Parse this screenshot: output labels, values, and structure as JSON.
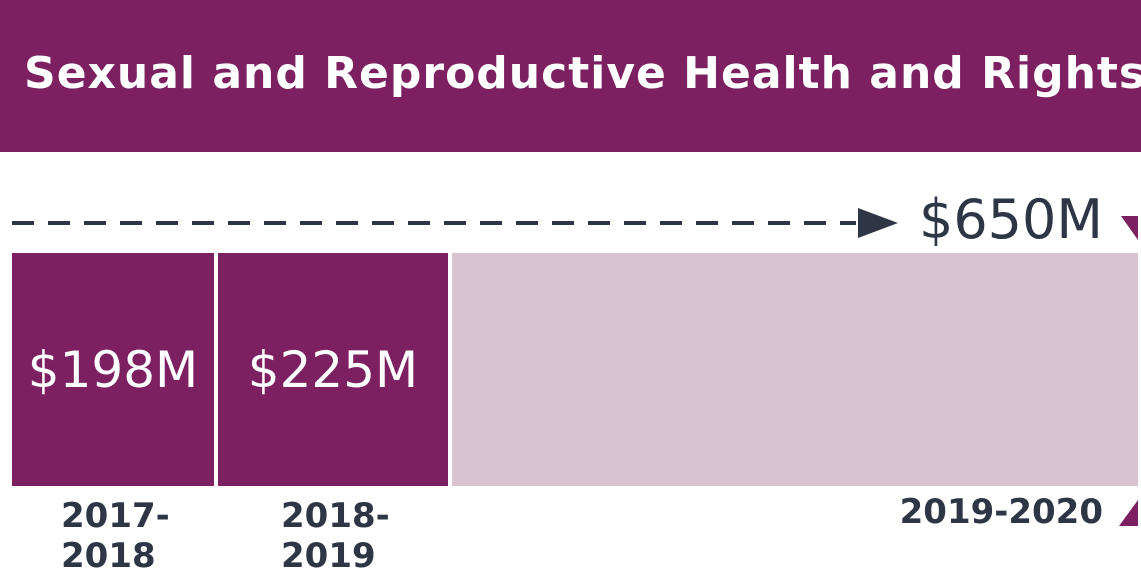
{
  "header": {
    "title": "Sexual and Reproductive Health and Rights"
  },
  "colors": {
    "header": "#7d2062",
    "bar": "#7d2062",
    "target_bar": "#d8c4d1",
    "text_dark": "#2e3646"
  },
  "chart_data": {
    "type": "bar",
    "title": "Sexual and Reproductive Health and Rights",
    "orientation": "horizontal-sequence",
    "categories": [
      "2017-\n2018",
      "2018-\n2019",
      "2019-2020"
    ],
    "values": [
      198,
      225,
      650
    ],
    "value_labels": [
      "$198M",
      "$225M",
      ""
    ],
    "target": {
      "value": 650,
      "label": "$650M"
    },
    "units": "$M"
  }
}
